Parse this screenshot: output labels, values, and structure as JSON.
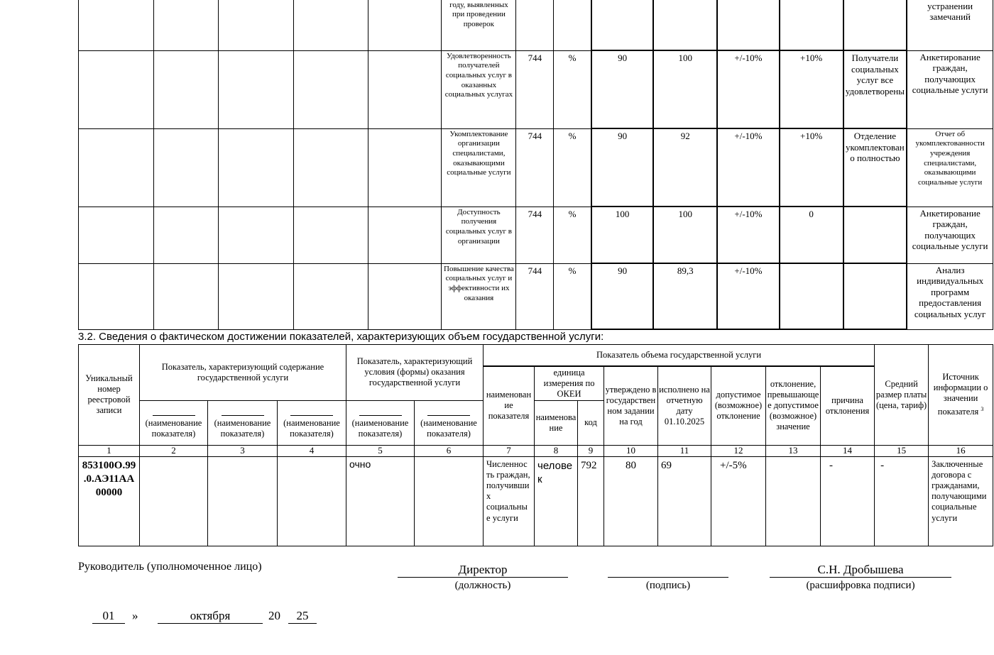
{
  "top_table": {
    "rows": [
      {
        "name": "году, выявленных при проведении проверок",
        "code": "",
        "unit": "",
        "approved": "",
        "actual": "",
        "allowed": "",
        "exceed": "",
        "reason": "",
        "source": "устранении замечаний"
      },
      {
        "name": "Удовлетворенность получателей социальных услуг в оказанных социальных услугах",
        "code": "744",
        "unit": "%",
        "approved": "90",
        "actual": "100",
        "allowed": "+/-10%",
        "exceed": "+10%",
        "reason": "Получатели социальных услуг все удовлетворены",
        "source": "Анкетирование граждан, получающих социальные услуги"
      },
      {
        "name": "Укомплектование организации специалистами, оказывающими социальные услуги",
        "code": "744",
        "unit": "%",
        "approved": "90",
        "actual": "92",
        "allowed": "+/-10%",
        "exceed": "+10%",
        "reason": "Отделение укомплектовано полностью",
        "source": "Отчет об укомплектованности учреждения специалистами, оказывающими социальные услуги"
      },
      {
        "name": "Доступность получения социальных услуг в организации",
        "code": "744",
        "unit": "%",
        "approved": "100",
        "actual": "100",
        "allowed": "+/-10%",
        "exceed": "0",
        "reason": "",
        "source": "Анкетирование граждан, получающих социальные услуги"
      },
      {
        "name": "Повышение качества социальных услуг и эффективности их оказания",
        "code": "744",
        "unit": "%",
        "approved": "90",
        "actual": "89,3",
        "allowed": "+/-10%",
        "exceed": "",
        "reason": "",
        "source": "Анализ индивидуальных программ предоставления социальных услуг"
      }
    ]
  },
  "section_title": "3.2. Сведения о фактическом достижении показателей, характеризующих объем государственной услуги:",
  "volume_table": {
    "h_unique": "Уникальный номер реестровой записи",
    "h_content": "Показатель, характеризующий содержание государственной услуги",
    "h_conditions": "Показатель, характеризующий условия (формы) оказания государственной услуги",
    "h_volume": "Показатель объема государственной услуги",
    "h_name": "наименование показателя",
    "h_unit": "единица измерения по ОКЕИ",
    "h_unit_name": "наименование",
    "h_unit_code": "код",
    "h_approved": "утверждено в государственном задании на год",
    "h_actual": "исполнено на отчетную дату 01.10.2025",
    "h_allowed": "допустимое (возможное) отклонение",
    "h_exceed": "отклонение, превышающее допустимое (возможное) значение",
    "h_reason": "причина отклонения",
    "h_fee": "Средний размер платы (цена, тариф)",
    "h_source": "Источник информации о значении показателя",
    "h_source_sup": "3",
    "h_indicator": "(наименование показателя)",
    "col_numbers": [
      "1",
      "2",
      "3",
      "4",
      "5",
      "6",
      "7",
      "8",
      "9",
      "10",
      "11",
      "12",
      "13",
      "14",
      "15",
      "16"
    ],
    "row": {
      "unique": "853100О.99.0.АЭ11АА00000",
      "c2": "",
      "c3": "",
      "c4": "",
      "c5": "очно",
      "c6": "",
      "name": "Численность граждан, получивших социальные услуги",
      "unit_name": "человек",
      "unit_code": "792",
      "approved": "80",
      "actual": "69",
      "allowed": "+/-5%",
      "exceed": "",
      "reason": "-",
      "fee": "-",
      "source": "Заключенные договора с гражданами, получающими социальные услуги"
    }
  },
  "signature": {
    "head_label": "Руководитель (уполномоченное лицо)",
    "position": "Директор",
    "position_caption": "(должность)",
    "signature_caption": "(подпись)",
    "name": "С.Н. Дробышева",
    "name_caption": "(расшифровка подписи)",
    "day": "01",
    "quote": "»",
    "month": "октября",
    "year_prefix": "20",
    "year_suffix": "25"
  }
}
